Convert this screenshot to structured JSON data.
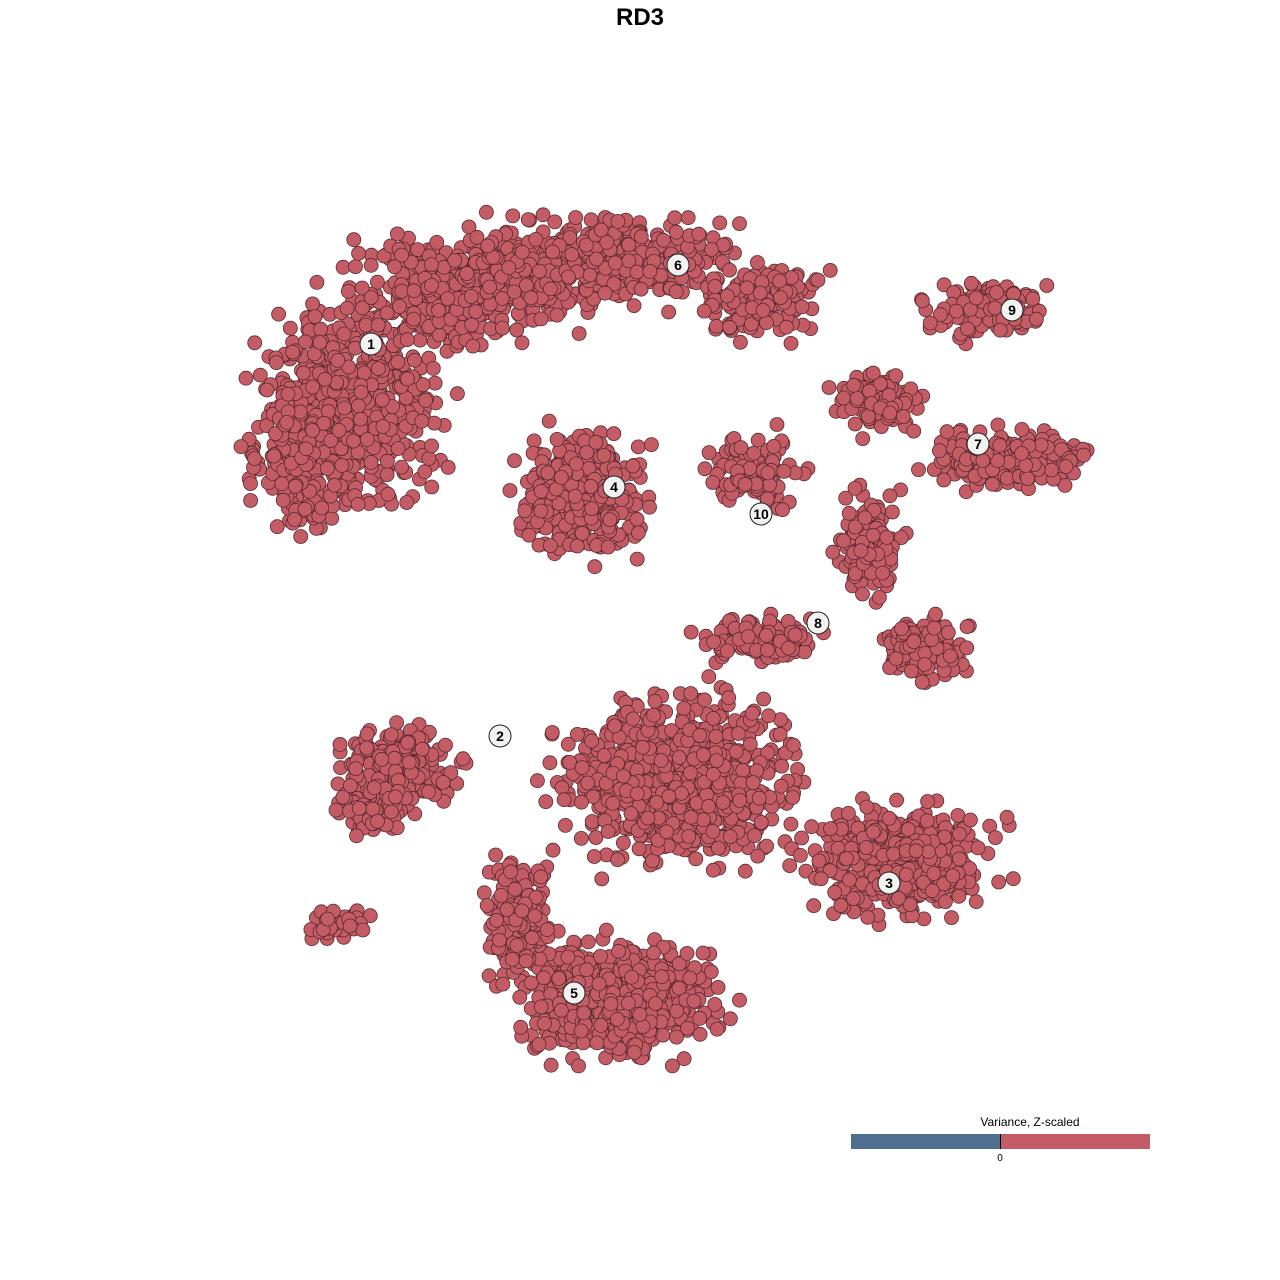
{
  "chart_data": {
    "type": "scatter",
    "title": "RD3",
    "xlabel": "",
    "ylabel": "",
    "grid": false,
    "point_color": "#c45c66",
    "point_edge_color": "#5a2a2e",
    "cluster_labels": [
      "1",
      "2",
      "3",
      "4",
      "5",
      "6",
      "7",
      "8",
      "9",
      "10"
    ],
    "legend": {
      "title": "Variance, Z-scaled",
      "placement": "bottom-right",
      "tick_labels": [
        "0"
      ],
      "low_color": "#506e90",
      "high_color": "#c45c66"
    }
  }
}
